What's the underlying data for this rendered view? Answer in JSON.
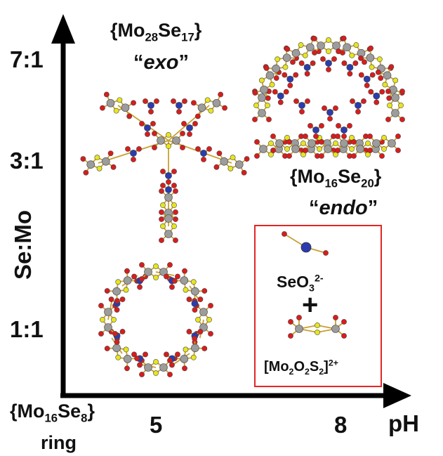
{
  "axes": {
    "y_label": "Se:Mo",
    "y_ticks": [
      "7:1",
      "3:1",
      "1:1"
    ],
    "x_label": "pH",
    "x_ticks": [
      "5",
      "8"
    ]
  },
  "clusters": {
    "exo": {
      "formula_main": "Mo",
      "n1": "28",
      "se": "Se",
      "n2": "17",
      "tag": "exo"
    },
    "endo": {
      "formula_main": "Mo",
      "n1": "16",
      "se": "Se",
      "n2": "20",
      "tag": "endo"
    },
    "ring": {
      "formula_main": "Mo",
      "n1": "16",
      "se": "Se",
      "n2": "8",
      "tag": "ring"
    }
  },
  "inset": {
    "selenite_base": "SeO",
    "selenite_sub": "3",
    "selenite_charge": "2-",
    "plus": "+",
    "linker_text": "[Mo",
    "linker_sub1": "2",
    "linker_o": "O",
    "linker_sub2": "2",
    "linker_s": "S",
    "linker_sub3": "2",
    "linker_close": "]",
    "linker_charge": "2+"
  },
  "colors": {
    "frame": "#e32626",
    "molybdenum": "#9c9c9c",
    "oxygen": "#d91c1c",
    "selenium": "#2a3cae",
    "sulfur": "#e6e61e",
    "bond": "#c8a030"
  }
}
